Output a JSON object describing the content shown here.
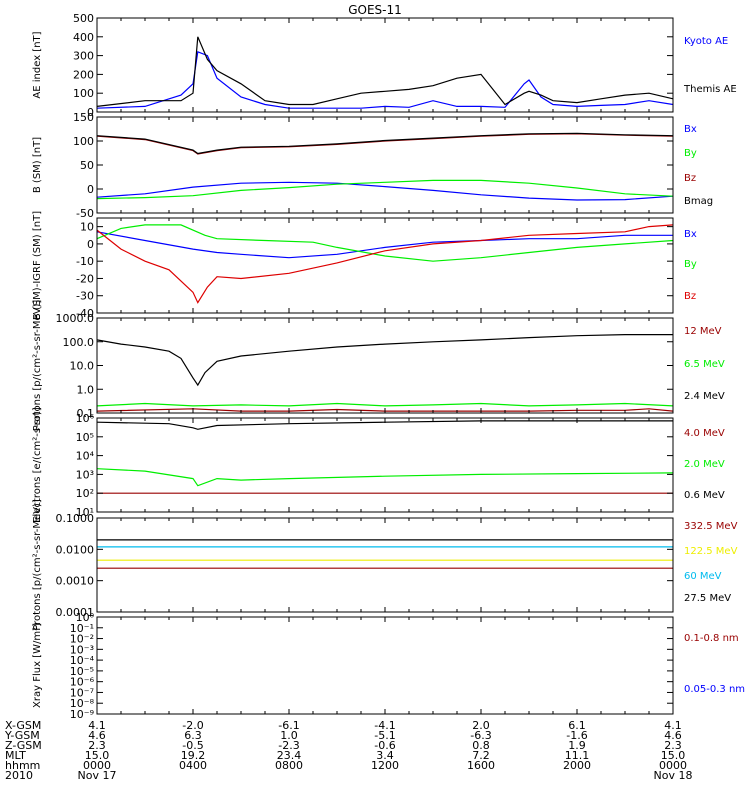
{
  "title": "GOES-11",
  "chart_data": [
    {
      "type": "line",
      "ylabel": "AE index [nT]",
      "ylim": [
        0,
        500
      ],
      "yticks": [
        "0",
        "100",
        "200",
        "300",
        "400",
        "500"
      ],
      "series": [
        {
          "name": "Kyoto AE",
          "color": "#0000ff",
          "x": [
            0,
            2,
            3.5,
            4,
            4.2,
            4.6,
            5,
            6,
            7,
            8,
            9,
            10,
            11,
            12,
            13,
            14,
            15,
            16,
            17,
            17.8,
            18,
            18.5,
            19,
            20,
            21,
            22,
            23,
            24
          ],
          "values": [
            20,
            30,
            90,
            150,
            320,
            300,
            180,
            80,
            40,
            20,
            20,
            20,
            20,
            30,
            25,
            60,
            30,
            30,
            25,
            150,
            170,
            80,
            40,
            30,
            35,
            40,
            60,
            40
          ]
        },
        {
          "name": "Themis AE",
          "color": "#000000",
          "x": [
            0,
            2,
            3.5,
            4,
            4.2,
            4.6,
            5,
            6,
            7,
            8,
            9,
            10,
            11,
            12,
            13,
            14,
            15,
            16,
            17,
            17.8,
            18,
            18.5,
            19,
            20,
            21,
            22,
            23,
            24
          ],
          "values": [
            30,
            60,
            60,
            100,
            400,
            280,
            220,
            150,
            60,
            40,
            40,
            70,
            100,
            110,
            120,
            140,
            180,
            200,
            40,
            100,
            110,
            90,
            60,
            50,
            70,
            90,
            100,
            70
          ]
        }
      ]
    },
    {
      "type": "line",
      "ylabel": "B (SM) [nT]",
      "ylim": [
        -50,
        150
      ],
      "yticks": [
        "-50",
        "0",
        "50",
        "100",
        "150"
      ],
      "series": [
        {
          "name": "Bx",
          "color": "#0000ff",
          "x": [
            0,
            2,
            4,
            6,
            8,
            10,
            12,
            14,
            16,
            18,
            20,
            22,
            24
          ],
          "values": [
            -17,
            -10,
            4,
            12,
            14,
            12,
            5,
            -3,
            -12,
            -19,
            -23,
            -22,
            -15
          ]
        },
        {
          "name": "By",
          "color": "#00ee00",
          "x": [
            0,
            2,
            4,
            6,
            8,
            10,
            12,
            14,
            16,
            18,
            20,
            22,
            24
          ],
          "values": [
            -20,
            -18,
            -14,
            -3,
            3,
            10,
            14,
            18,
            18,
            12,
            2,
            -10,
            -15
          ]
        },
        {
          "name": "Bz",
          "color": "#990000",
          "x": [
            0,
            2,
            4,
            4.2,
            5,
            6,
            8,
            10,
            12,
            14,
            16,
            18,
            20,
            22,
            24
          ],
          "values": [
            110,
            103,
            80,
            73,
            80,
            86,
            88,
            93,
            100,
            105,
            110,
            114,
            115,
            112,
            110
          ]
        },
        {
          "name": "Bmag",
          "color": "#000000",
          "x": [
            0,
            2,
            4,
            4.2,
            5,
            6,
            8,
            10,
            12,
            14,
            16,
            18,
            20,
            22,
            24
          ],
          "values": [
            111,
            104,
            81,
            74,
            81,
            87,
            89,
            94,
            101,
            106,
            111,
            115,
            116,
            113,
            111
          ]
        }
      ]
    },
    {
      "type": "line",
      "ylabel": "B (SM)-IGRF (SM) [nT]",
      "ylim": [
        -40,
        15
      ],
      "yticks": [
        "-40",
        "-30",
        "-20",
        "-10",
        "0",
        "10"
      ],
      "series": [
        {
          "name": "Bx",
          "color": "#0000ff",
          "x": [
            0,
            2,
            4,
            5,
            6,
            8,
            10,
            12,
            14,
            16,
            18,
            20,
            22,
            24
          ],
          "values": [
            7,
            2,
            -3,
            -5,
            -6,
            -8,
            -6,
            -2,
            1,
            2,
            3,
            3,
            5,
            5
          ]
        },
        {
          "name": "By",
          "color": "#00ee00",
          "x": [
            0,
            1,
            2,
            3.5,
            4.5,
            5,
            7,
            9,
            10,
            12,
            14,
            16,
            18,
            20,
            22,
            24
          ],
          "values": [
            3,
            9,
            11,
            11,
            5,
            3,
            2,
            1,
            -2,
            -7,
            -10,
            -8,
            -5,
            -2,
            0,
            2
          ]
        },
        {
          "name": "Bz",
          "color": "#dd0000",
          "x": [
            0,
            1,
            2,
            3,
            4,
            4.2,
            4.6,
            5,
            6,
            8,
            10,
            12,
            14,
            16,
            18,
            20,
            22,
            23,
            24
          ],
          "values": [
            8,
            -3,
            -10,
            -15,
            -28,
            -34,
            -25,
            -19,
            -20,
            -17,
            -11,
            -4,
            0,
            2,
            5,
            6,
            7,
            10,
            11
          ]
        }
      ]
    },
    {
      "type": "line",
      "ylabel": "Protons [p/(cm²-s-sr-MeV)]",
      "yscale": "log",
      "ylim": [
        0.1,
        1000
      ],
      "yticks": [
        "0.1",
        "1.0",
        "10.0",
        "100.0",
        "1000.0"
      ],
      "series": [
        {
          "name": "12 MeV",
          "color": "#990000",
          "x": [
            0,
            4,
            6,
            8,
            10,
            12,
            14,
            16,
            18,
            20,
            22,
            23,
            24
          ],
          "values": [
            0.12,
            0.15,
            0.12,
            0.12,
            0.14,
            0.12,
            0.12,
            0.12,
            0.12,
            0.13,
            0.13,
            0.15,
            0.12
          ]
        },
        {
          "name": "6.5 MeV",
          "color": "#00ee00",
          "x": [
            0,
            2,
            4,
            6,
            8,
            10,
            12,
            14,
            16,
            18,
            20,
            22,
            24
          ],
          "values": [
            0.2,
            0.25,
            0.2,
            0.22,
            0.2,
            0.25,
            0.2,
            0.22,
            0.25,
            0.2,
            0.22,
            0.25,
            0.2
          ]
        },
        {
          "name": "2.4 MeV",
          "color": "#000000",
          "x": [
            0,
            1,
            2,
            3,
            3.5,
            4,
            4.2,
            4.5,
            5,
            6,
            8,
            10,
            12,
            14,
            16,
            18,
            20,
            22,
            24
          ],
          "values": [
            120,
            80,
            60,
            40,
            20,
            3,
            1.5,
            5,
            15,
            25,
            40,
            60,
            80,
            100,
            120,
            150,
            180,
            200,
            200
          ]
        }
      ]
    },
    {
      "type": "line",
      "ylabel": "Electrons [e/(cm²-s-sr)]",
      "yscale": "log",
      "ylim": [
        10,
        1000000
      ],
      "yticks": [
        "10¹",
        "10²",
        "10³",
        "10⁴",
        "10⁵",
        "10⁶"
      ],
      "series": [
        {
          "name": "4.0 MeV",
          "color": "#990000",
          "x": [
            0,
            4,
            8,
            12,
            16,
            20,
            24
          ],
          "values": [
            100,
            100,
            100,
            100,
            100,
            100,
            100
          ]
        },
        {
          "name": "2.0 MeV",
          "color": "#00ee00",
          "x": [
            0,
            2,
            4,
            4.2,
            5,
            6,
            8,
            12,
            16,
            20,
            24
          ],
          "values": [
            2000,
            1500,
            600,
            250,
            600,
            500,
            600,
            800,
            1000,
            1100,
            1200
          ]
        },
        {
          "name": "0.6 MeV",
          "color": "#000000",
          "x": [
            0,
            3,
            4,
            4.2,
            5,
            8,
            12,
            16,
            20,
            24
          ],
          "values": [
            600000,
            500000,
            300000,
            250000,
            400000,
            500000,
            600000,
            700000,
            700000,
            700000
          ]
        }
      ]
    },
    {
      "type": "line",
      "ylabel": "Protons [p/(cm²-s-sr-MeV)]",
      "yscale": "log",
      "ylim": [
        0.0001,
        0.1
      ],
      "yticks": [
        "0.0001",
        "0.0010",
        "0.0100",
        "0.1000"
      ],
      "series": [
        {
          "name": "332.5 MeV",
          "color": "#990000",
          "x": [
            0,
            4,
            8,
            12,
            16,
            20,
            24
          ],
          "values": [
            0.0025,
            0.0025,
            0.0025,
            0.0025,
            0.0025,
            0.0025,
            0.0025
          ]
        },
        {
          "name": "122.5 MeV",
          "color": "#eeee00",
          "x": [
            0,
            4,
            8,
            12,
            16,
            20,
            24
          ],
          "values": [
            0.0045,
            0.0045,
            0.0045,
            0.0045,
            0.0045,
            0.0045,
            0.0045
          ]
        },
        {
          "name": "60 MeV",
          "color": "#00bbee",
          "x": [
            0,
            4,
            8,
            12,
            16,
            20,
            24
          ],
          "values": [
            0.012,
            0.012,
            0.012,
            0.012,
            0.012,
            0.012,
            0.012
          ]
        },
        {
          "name": "27.5 MeV",
          "color": "#000000",
          "x": [
            0,
            4,
            8,
            12,
            16,
            20,
            24
          ],
          "values": [
            0.02,
            0.02,
            0.02,
            0.02,
            0.02,
            0.02,
            0.02
          ]
        }
      ]
    },
    {
      "type": "line",
      "ylabel": "Xray Flux [W/m²]",
      "yscale": "log",
      "ylim": [
        1e-09,
        1
      ],
      "yticks": [
        "10⁻⁹",
        "10⁻⁸",
        "10⁻⁷",
        "10⁻⁶",
        "10⁻⁵",
        "10⁻⁴",
        "10⁻³",
        "10⁻²",
        "10⁻¹",
        "10⁰"
      ],
      "series": [
        {
          "name": "0.1-0.8 nm",
          "color": "#990000",
          "x": [],
          "values": []
        },
        {
          "name": "0.05-0.3 nm",
          "color": "#0000ff",
          "x": [],
          "values": []
        }
      ]
    }
  ],
  "bottom_axis": {
    "rows": [
      {
        "label": "X-GSM",
        "values": [
          "4.1",
          "-2.0",
          "-6.1",
          "-4.1",
          "2.0",
          "6.1",
          "4.1"
        ]
      },
      {
        "label": "Y-GSM",
        "values": [
          "4.6",
          "6.3",
          "1.0",
          "-5.1",
          "-6.3",
          "-1.6",
          "4.6"
        ]
      },
      {
        "label": "Z-GSM",
        "values": [
          "2.3",
          "-0.5",
          "-2.3",
          "-0.6",
          "0.8",
          "1.9",
          "2.3"
        ]
      },
      {
        "label": "MLT",
        "values": [
          "15.0",
          "19.2",
          "23.4",
          "3.4",
          "7.2",
          "11.1",
          "15.0"
        ]
      },
      {
        "label": "hhmm",
        "values": [
          "0000",
          "0400",
          "0800",
          "1200",
          "1600",
          "2000",
          "0000"
        ]
      }
    ],
    "date_row": {
      "label": "2010",
      "start": "Nov 17",
      "end": "Nov 18"
    }
  }
}
